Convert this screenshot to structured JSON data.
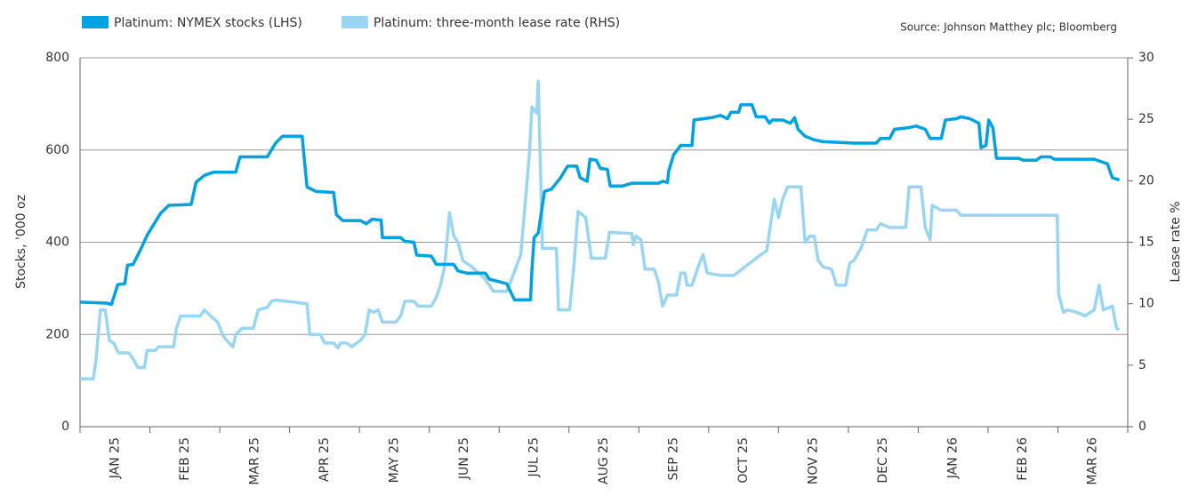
{
  "chart_data": {
    "type": "line",
    "source": "Source: Johnson Matthey plc; Bloomberg",
    "ylabel": "Stocks, '000 oz",
    "y2label": "Lease rate %",
    "xlim": [
      0,
      15
    ],
    "xticks": [
      {
        "value": 0.5,
        "label": "JAN 25"
      },
      {
        "value": 1.5,
        "label": "FEB 25"
      },
      {
        "value": 2.5,
        "label": "MAR 25"
      },
      {
        "value": 3.5,
        "label": "APR 25"
      },
      {
        "value": 4.5,
        "label": "MAY 25"
      },
      {
        "value": 5.5,
        "label": "JUN 25"
      },
      {
        "value": 6.5,
        "label": "JUL 25"
      },
      {
        "value": 7.5,
        "label": "AUG 25"
      },
      {
        "value": 8.5,
        "label": "SEP 25"
      },
      {
        "value": 9.5,
        "label": "OCT 25"
      },
      {
        "value": 10.5,
        "label": "NOV 25"
      },
      {
        "value": 11.5,
        "label": "DEC 25"
      },
      {
        "value": 12.5,
        "label": "JAN 26"
      },
      {
        "value": 13.5,
        "label": "FEB 26"
      },
      {
        "value": 14.5,
        "label": "MAR 26"
      }
    ],
    "ylim": [
      0,
      800
    ],
    "yticks": [
      0,
      200,
      400,
      600,
      800
    ],
    "y2lim": [
      0,
      30
    ],
    "y2ticks": [
      0,
      5,
      10,
      15,
      20,
      25,
      30
    ],
    "grid": true,
    "series": [
      {
        "name": "Platinum: NYMEX stocks (LHS)",
        "color": "#00a3e0",
        "axis": "y",
        "x": [
          0,
          0.38,
          0.45,
          0.54,
          0.64,
          0.68,
          0.76,
          0.87,
          0.96,
          1.15,
          1.27,
          1.59,
          1.66,
          1.78,
          1.91,
          2.23,
          2.29,
          2.68,
          2.8,
          2.9,
          3.18,
          3.25,
          3.38,
          3.63,
          3.67,
          3.76,
          4.01,
          4.1,
          4.18,
          4.31,
          4.33,
          4.59,
          4.65,
          4.78,
          4.82,
          5.03,
          5.1,
          5.35,
          5.41,
          5.54,
          5.8,
          5.86,
          6.11,
          6.22,
          6.45,
          6.47,
          6.5,
          6.56,
          6.65,
          6.75,
          6.88,
          6.98,
          7.11,
          7.16,
          7.26,
          7.3,
          7.39,
          7.45,
          7.55,
          7.59,
          7.77,
          7.9,
          8.28,
          8.34,
          8.41,
          8.43,
          8.5,
          8.6,
          8.76,
          8.79,
          9.04,
          9.17,
          9.27,
          9.32,
          9.43,
          9.46,
          9.62,
          9.68,
          9.81,
          9.87,
          9.91,
          10.06,
          10.17,
          10.23,
          10.28,
          10.38,
          10.51,
          10.64,
          11.08,
          11.4,
          11.46,
          11.59,
          11.66,
          11.85,
          11.97,
          12.1,
          12.17,
          12.33,
          12.39,
          12.55,
          12.61,
          12.74,
          12.87,
          12.9,
          12.97,
          13.01,
          13.07,
          13.12,
          13.44,
          13.5,
          13.69,
          13.76,
          13.89,
          13.95,
          14.52,
          14.71,
          14.78,
          14.88
        ],
        "values": [
          270,
          268,
          265,
          308,
          310,
          350,
          352,
          385,
          415,
          462,
          480,
          482,
          530,
          545,
          552,
          552,
          585,
          585,
          615,
          630,
          630,
          520,
          510,
          508,
          460,
          447,
          447,
          440,
          450,
          448,
          410,
          410,
          402,
          400,
          372,
          370,
          352,
          352,
          338,
          333,
          333,
          320,
          310,
          275,
          275,
          340,
          410,
          420,
          510,
          515,
          540,
          565,
          565,
          540,
          532,
          580,
          578,
          560,
          558,
          522,
          522,
          528,
          528,
          532,
          530,
          555,
          590,
          610,
          610,
          665,
          670,
          675,
          668,
          682,
          682,
          698,
          698,
          672,
          672,
          658,
          665,
          665,
          658,
          670,
          645,
          630,
          622,
          618,
          615,
          615,
          625,
          625,
          645,
          648,
          652,
          645,
          625,
          625,
          665,
          668,
          672,
          668,
          658,
          605,
          610,
          665,
          648,
          582,
          582,
          578,
          578,
          585,
          585,
          580,
          580,
          570,
          540,
          535
        ]
      },
      {
        "name": "Platinum: three-month lease rate (RHS)",
        "color": "#99d6f3",
        "axis": "y2",
        "x": [
          0,
          0.19,
          0.23,
          0.29,
          0.36,
          0.42,
          0.48,
          0.55,
          0.7,
          0.76,
          0.83,
          0.92,
          0.96,
          1.08,
          1.12,
          1.34,
          1.38,
          1.44,
          1.72,
          1.78,
          1.87,
          1.97,
          2.04,
          2.1,
          2.19,
          2.23,
          2.32,
          2.48,
          2.55,
          2.68,
          2.74,
          2.8,
          3.25,
          3.29,
          3.44,
          3.5,
          3.63,
          3.69,
          3.73,
          3.82,
          3.89,
          4.01,
          4.08,
          4.14,
          4.2,
          4.27,
          4.33,
          4.52,
          4.59,
          4.65,
          4.78,
          4.84,
          5.03,
          5.1,
          5.16,
          5.22,
          5.29,
          5.35,
          5.41,
          5.48,
          5.61,
          5.8,
          5.92,
          6.11,
          6.18,
          6.31,
          6.37,
          6.43,
          6.47,
          6.54,
          6.56,
          6.62,
          6.82,
          6.85,
          7.01,
          7.07,
          7.13,
          7.24,
          7.32,
          7.52,
          7.58,
          7.9,
          7.92,
          7.96,
          8.03,
          8.09,
          8.22,
          8.28,
          8.34,
          8.41,
          8.54,
          8.6,
          8.66,
          8.69,
          8.76,
          8.85,
          8.92,
          8.98,
          9.17,
          9.36,
          9.75,
          9.83,
          9.94,
          10.0,
          10.06,
          10.13,
          10.32,
          10.38,
          10.45,
          10.51,
          10.57,
          10.64,
          10.76,
          10.83,
          10.96,
          11.02,
          11.08,
          11.18,
          11.27,
          11.4,
          11.46,
          11.59,
          11.82,
          11.87,
          12.04,
          12.1,
          12.17,
          12.2,
          12.33,
          12.55,
          12.61,
          13.99,
          14.01,
          14.08,
          14.14,
          14.27,
          14.39,
          14.52,
          14.59,
          14.65,
          14.78,
          14.84,
          14.88
        ],
        "values": [
          3.9,
          3.9,
          5.5,
          9.5,
          9.5,
          7,
          6.8,
          6,
          6,
          5.5,
          4.8,
          4.8,
          6.2,
          6.2,
          6.5,
          6.5,
          8,
          9,
          9,
          9.5,
          9,
          8.5,
          7.5,
          7,
          6.5,
          7.5,
          8,
          8,
          9.5,
          9.7,
          10.2,
          10.3,
          10,
          7.5,
          7.5,
          6.8,
          6.8,
          6.4,
          6.8,
          6.8,
          6.5,
          7,
          7.5,
          9.5,
          9.3,
          9.5,
          8.5,
          8.5,
          9,
          10.2,
          10.2,
          9.8,
          9.8,
          10.5,
          11.5,
          13,
          17.4,
          15.5,
          15,
          13.5,
          13,
          12,
          11,
          11,
          12,
          14,
          18,
          22,
          26,
          25.5,
          28.1,
          14.5,
          14.5,
          9.5,
          9.5,
          13,
          17.5,
          17,
          13.7,
          13.7,
          15.8,
          15.7,
          14.8,
          15.5,
          15.2,
          12.8,
          12.8,
          11.8,
          9.8,
          10.7,
          10.7,
          12.5,
          12.5,
          11.5,
          11.5,
          13,
          14,
          12.5,
          12.3,
          12.3,
          14,
          14.3,
          18.5,
          17,
          18.5,
          19.5,
          19.5,
          15,
          15.5,
          15.5,
          13.5,
          13,
          12.8,
          11.5,
          11.5,
          13.3,
          13.5,
          14.5,
          16,
          16,
          16.5,
          16.2,
          16.2,
          19.5,
          19.5,
          16.2,
          15.2,
          18,
          17.6,
          17.6,
          17.2,
          17.2,
          10.8,
          9.3,
          9.5,
          9.3,
          9,
          9.5,
          11.5,
          9.5,
          9.8,
          8,
          7.9
        ]
      }
    ]
  }
}
